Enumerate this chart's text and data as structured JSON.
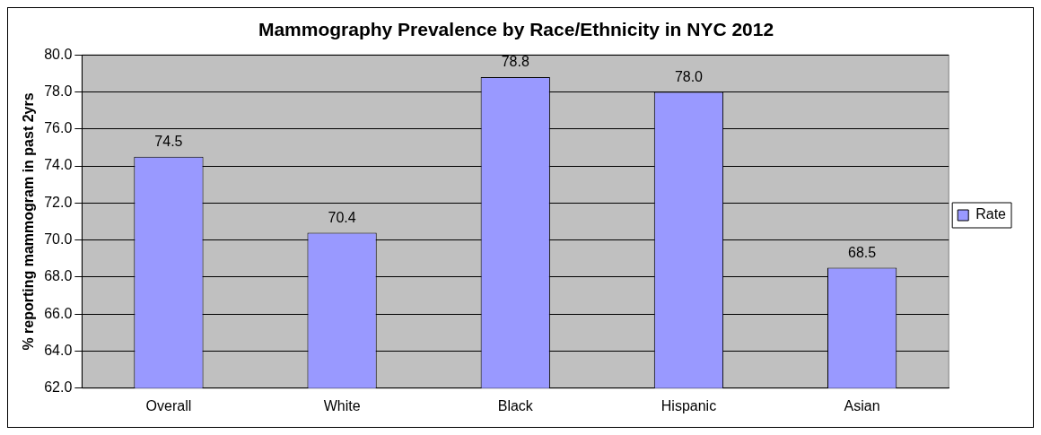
{
  "chart_data": {
    "type": "bar",
    "title": "Mammography Prevalence by Race/Ethnicity in NYC 2012",
    "ylabel": "% reporting mammogram in past 2yrs",
    "categories": [
      "Overall",
      "White",
      "Black",
      "Hispanic",
      "Asian"
    ],
    "series": [
      {
        "name": "Rate",
        "color": "#9999ff",
        "values": [
          74.5,
          70.4,
          78.8,
          78.0,
          68.5
        ]
      }
    ],
    "ylim": [
      62,
      80
    ],
    "yticks": [
      {
        "value": 62,
        "label": "62.0"
      },
      {
        "value": 64,
        "label": "64.0"
      },
      {
        "value": 66,
        "label": "66.0"
      },
      {
        "value": 68,
        "label": "68.0"
      },
      {
        "value": 70,
        "label": "70.0"
      },
      {
        "value": 72,
        "label": "72.0"
      },
      {
        "value": 74,
        "label": "74.0"
      },
      {
        "value": 76,
        "label": "76.0"
      },
      {
        "value": 78,
        "label": "78.0"
      },
      {
        "value": 80,
        "label": "80.0"
      }
    ],
    "value_labels": [
      "74.5",
      "70.4",
      "78.8",
      "78.0",
      "68.5"
    ],
    "grid": "y",
    "legend": "right"
  }
}
